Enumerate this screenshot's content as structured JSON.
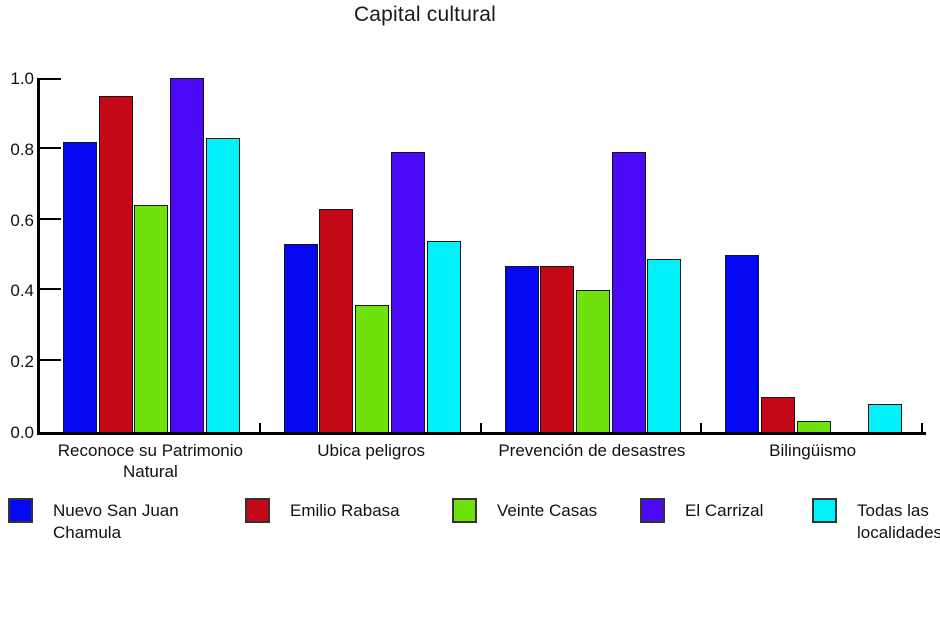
{
  "chart_data": {
    "type": "bar",
    "title": "Capital cultural",
    "categories": [
      "Reconoce su Patrimonio Natural",
      "Ubica peligros",
      "Prevención de desastres",
      "Bilingüismo"
    ],
    "series": [
      {
        "name": "Nuevo San Juan Chamula",
        "color": "#0509F2",
        "values": [
          0.82,
          0.53,
          0.47,
          0.5
        ]
      },
      {
        "name": "Emilio Rabasa",
        "color": "#C40818",
        "values": [
          0.95,
          0.63,
          0.47,
          0.1
        ]
      },
      {
        "name": "Veinte Casas",
        "color": "#6FE10D",
        "values": [
          0.64,
          0.36,
          0.4,
          0.03
        ]
      },
      {
        "name": "El Carrizal",
        "color": "#4B0AF5",
        "values": [
          1.0,
          0.79,
          0.79,
          0.0
        ]
      },
      {
        "name": "Todas las localidades",
        "color": "#00F2F8",
        "values": [
          0.83,
          0.54,
          0.49,
          0.08
        ]
      }
    ],
    "xlabel": "",
    "ylabel": "",
    "ylim": [
      0.0,
      1.0
    ],
    "y_ticks": [
      "0.0",
      "0.2",
      "0.4",
      "0.6",
      "0.8",
      "1.0"
    ],
    "grid": false,
    "legend_position": "bottom",
    "axis_color": "#000000",
    "background": "#FFFFFF"
  }
}
